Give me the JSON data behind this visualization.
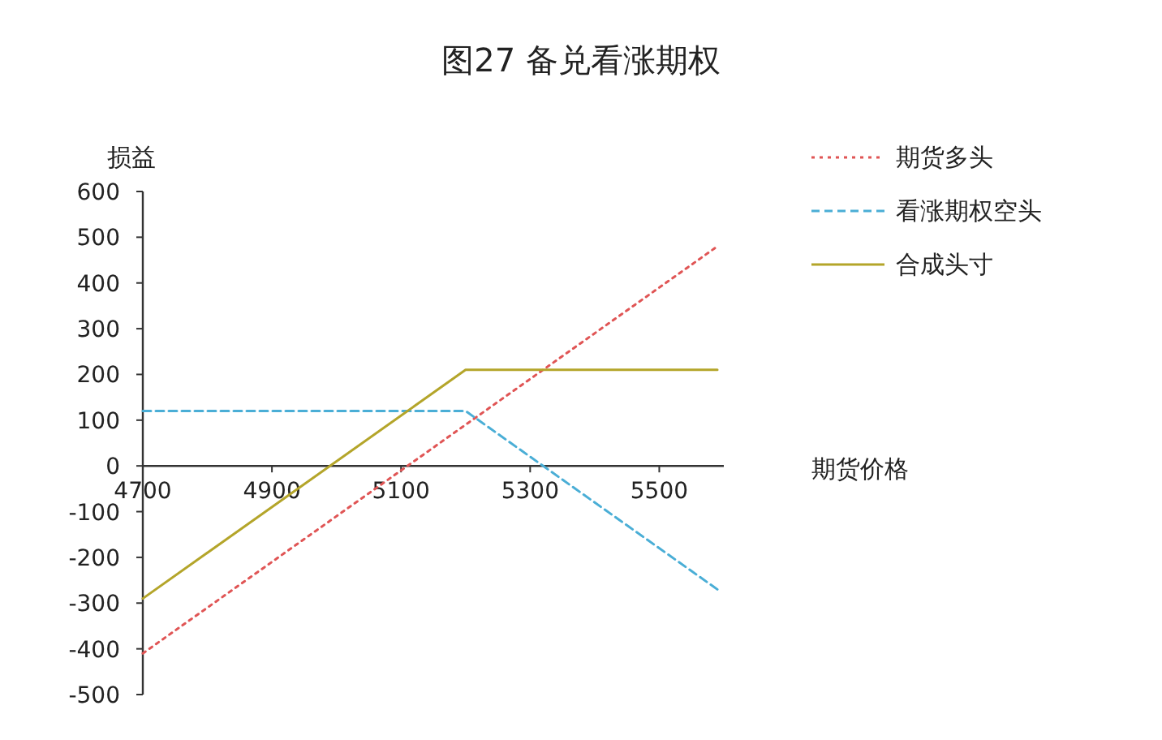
{
  "chart_data": {
    "type": "line",
    "title": "图27  备兑看涨期权",
    "xlabel": "期货价格",
    "ylabel": "损益",
    "xlim": [
      4700,
      5600
    ],
    "xticks": [
      4700,
      4900,
      5100,
      5300,
      5500
    ],
    "ylim": [
      -500,
      600
    ],
    "yticks": [
      -500,
      -400,
      -300,
      -200,
      -100,
      0,
      100,
      200,
      300,
      400,
      500,
      600
    ],
    "series": [
      {
        "name": "期货多头",
        "color": "#e05555",
        "line_style": "dotted",
        "x": [
          4700,
          5590
        ],
        "values": [
          -410,
          480
        ]
      },
      {
        "name": "看涨期权空头",
        "color": "#4aaed6",
        "line_style": "dashed",
        "x": [
          4700,
          5200,
          5590
        ],
        "values": [
          120,
          120,
          -270
        ]
      },
      {
        "name": "合成头寸",
        "color": "#b4a52a",
        "line_style": "solid",
        "x": [
          4700,
          5200,
          5590
        ],
        "values": [
          -290,
          210,
          210
        ]
      }
    ],
    "grid": false,
    "legend": "right"
  }
}
